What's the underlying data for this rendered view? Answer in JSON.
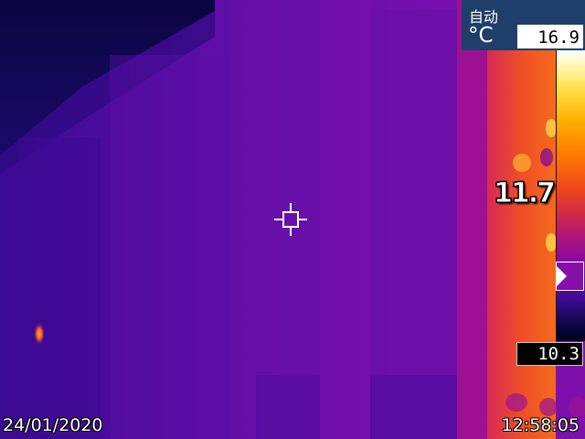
{
  "overlay": {
    "mode_label": "自动",
    "unit_label": "°C",
    "max_temp": "16.9",
    "min_temp": "10.3",
    "spot_temp": "11.7",
    "date": "24/01/2020",
    "time": "12:58:05"
  },
  "icons": {
    "crosshair": "crosshair-icon",
    "level_marker": "triangle-right-icon"
  },
  "colors": {
    "panel_bg": "#1f3f6a",
    "palette": "iron"
  }
}
